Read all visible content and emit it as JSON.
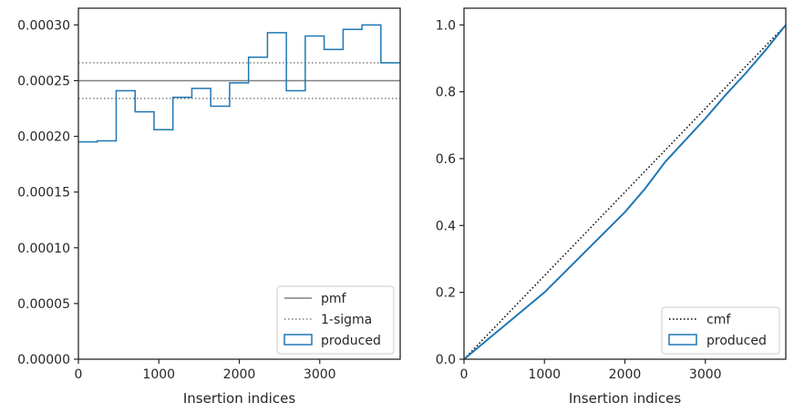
{
  "chart_data": [
    {
      "type": "line",
      "xlabel": "Insertion indices",
      "ylabel": "",
      "xlim": [
        0,
        4000
      ],
      "ylim": [
        0,
        0.000315
      ],
      "xticks": [
        0,
        1000,
        2000,
        3000
      ],
      "xtick_labels": [
        "0",
        "1000",
        "2000",
        "3000"
      ],
      "yticks": [
        0,
        5e-05,
        0.0001,
        0.00015,
        0.0002,
        0.00025,
        0.0003
      ],
      "ytick_labels": [
        "0.00000",
        "0.00005",
        "0.00010",
        "0.00015",
        "0.00020",
        "0.00025",
        "0.00030"
      ],
      "grid": false,
      "legend_position": "lower-right",
      "series": [
        {
          "name": "pmf",
          "style": "solid",
          "color": "#808080",
          "y": 0.00025
        },
        {
          "name": "1-sigma",
          "style": "dotted",
          "color": "#808080",
          "y": [
            0.000234,
            0.000266
          ]
        },
        {
          "name": "produced",
          "style": "step",
          "color": "#1f77b4",
          "bin_edges": [
            0,
            235,
            470,
            705,
            940,
            1175,
            1410,
            1645,
            1880,
            2115,
            2350,
            2585,
            2820,
            3055,
            3290,
            3525,
            3760,
            4000
          ],
          "values": [
            0.000195,
            0.000196,
            0.000241,
            0.000222,
            0.000206,
            0.000235,
            0.000243,
            0.000227,
            0.000248,
            0.000271,
            0.000293,
            0.000241,
            0.00029,
            0.000278,
            0.000296,
            0.0003,
            0.000266
          ]
        }
      ]
    },
    {
      "type": "line",
      "xlabel": "Insertion indices",
      "ylabel": "",
      "xlim": [
        0,
        4000
      ],
      "ylim": [
        0,
        1.05
      ],
      "xticks": [
        0,
        1000,
        2000,
        3000
      ],
      "xtick_labels": [
        "0",
        "1000",
        "2000",
        "3000"
      ],
      "yticks": [
        0,
        0.2,
        0.4,
        0.6,
        0.8,
        1.0
      ],
      "ytick_labels": [
        "0.0",
        "0.2",
        "0.4",
        "0.6",
        "0.8",
        "1.0"
      ],
      "grid": false,
      "legend_position": "lower-right",
      "series": [
        {
          "name": "cmf",
          "style": "dotted",
          "color": "#000000",
          "x": [
            0,
            4000
          ],
          "y": [
            0,
            1
          ]
        },
        {
          "name": "produced",
          "style": "solid",
          "color": "#1f77b4",
          "x": [
            0,
            250,
            500,
            750,
            1000,
            1250,
            1500,
            1750,
            2000,
            2250,
            2500,
            2750,
            3000,
            3250,
            3500,
            3750,
            4000
          ],
          "y": [
            0,
            0.05,
            0.1,
            0.15,
            0.2,
            0.26,
            0.32,
            0.38,
            0.44,
            0.51,
            0.59,
            0.655,
            0.72,
            0.79,
            0.855,
            0.925,
            1.0
          ]
        }
      ]
    }
  ]
}
